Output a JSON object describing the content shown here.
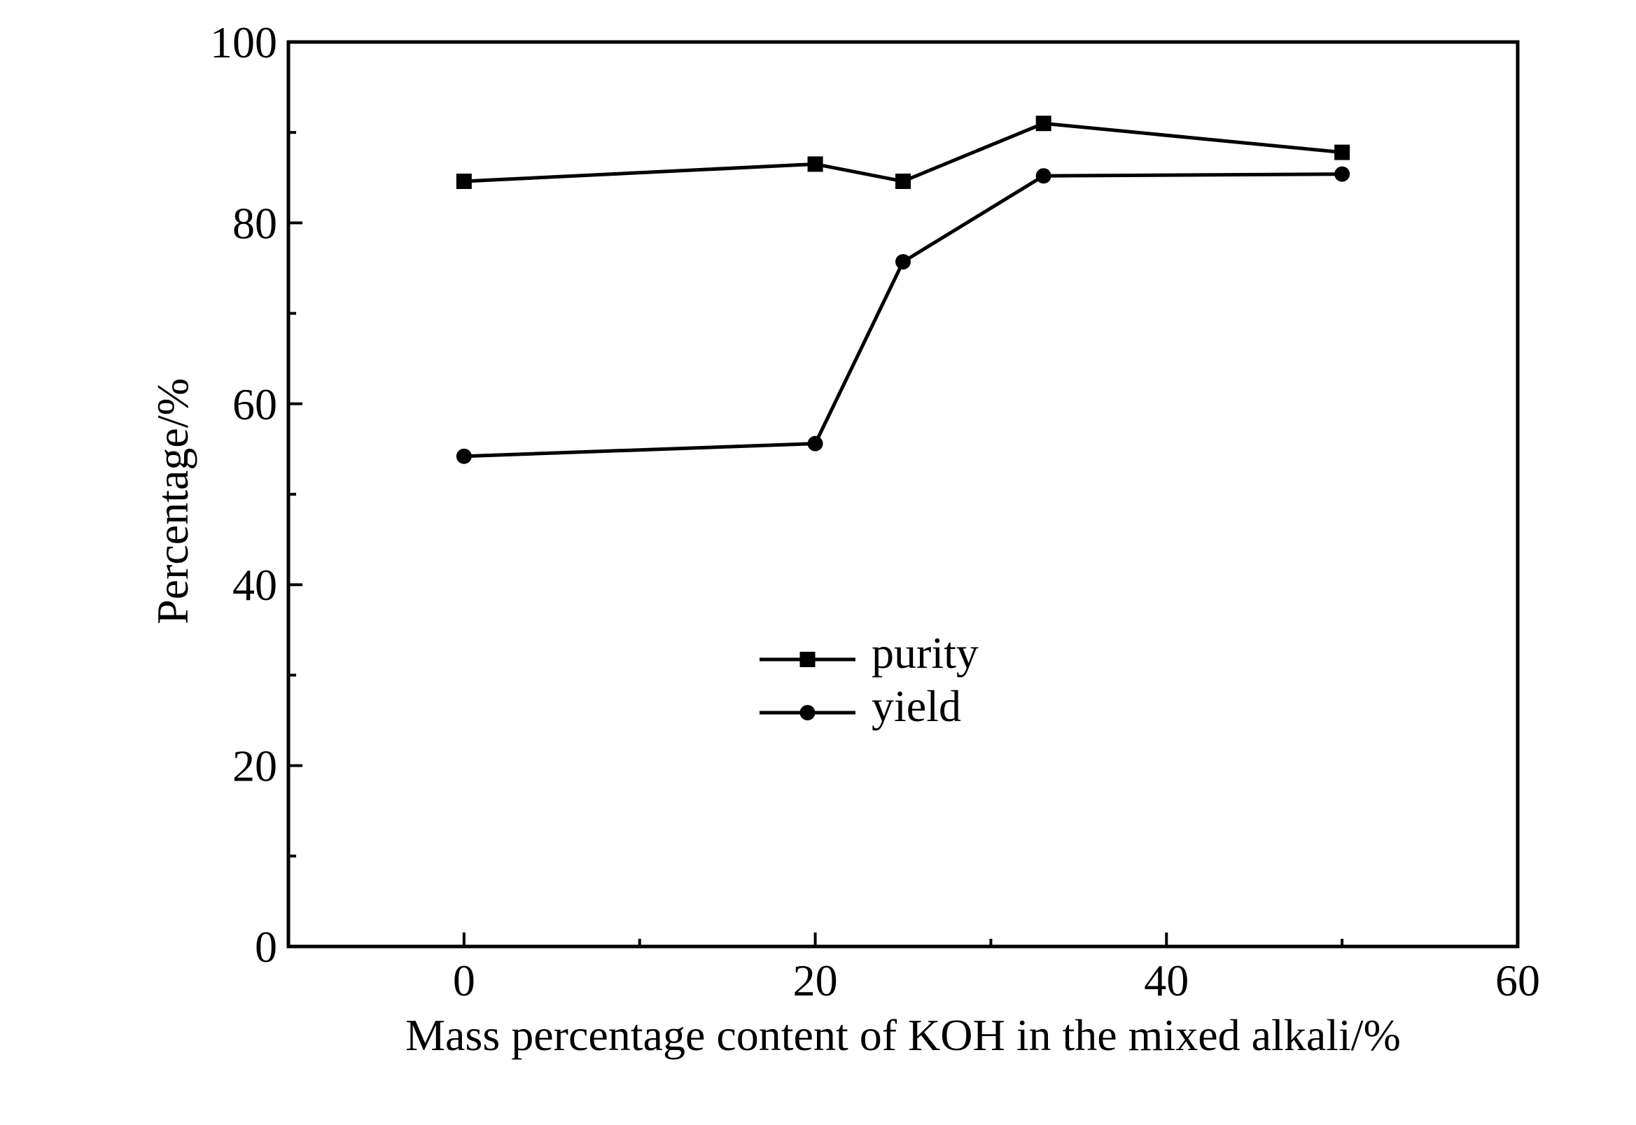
{
  "chart_data": {
    "type": "line",
    "xlabel": "Mass percentage content of KOH in the mixed alkali/%",
    "ylabel": "Percentage/%",
    "xlim": [
      -10,
      60
    ],
    "ylim": [
      0,
      100
    ],
    "x_ticks": [
      0,
      20,
      40,
      60
    ],
    "x_minor_ticks": [
      10,
      30,
      50
    ],
    "y_ticks": [
      0,
      20,
      40,
      60,
      80,
      100
    ],
    "y_minor_ticks": [
      10,
      30,
      50,
      70,
      90
    ],
    "grid": false,
    "legend_position": "center",
    "series": [
      {
        "name": "purity",
        "marker": "square",
        "color": "#000000",
        "x": [
          0,
          20,
          25,
          33,
          50
        ],
        "y": [
          84.6,
          86.5,
          84.6,
          91.0,
          87.8
        ]
      },
      {
        "name": "yield",
        "marker": "circle",
        "color": "#000000",
        "x": [
          0,
          20,
          25,
          33,
          50
        ],
        "y": [
          54.2,
          55.6,
          75.7,
          85.2,
          85.4
        ]
      }
    ]
  }
}
